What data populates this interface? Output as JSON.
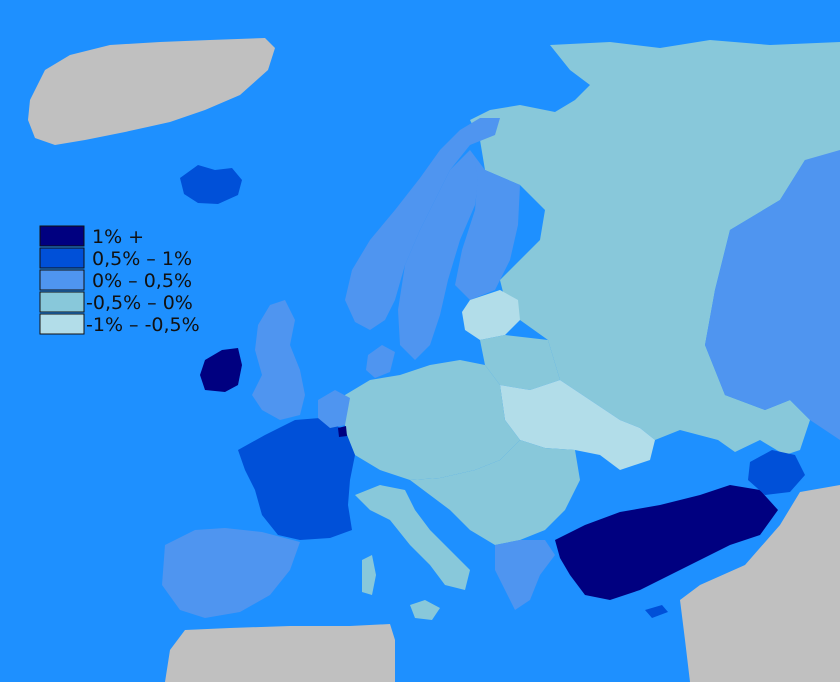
{
  "colors": {
    "sea": "#1e90ff",
    "non_eu": "#c0c0c0",
    "class_1": "#000080",
    "class_2": "#0050d8",
    "class_3": "#4f95f0",
    "class_4": "#88c8da",
    "class_5": "#b2dde9",
    "border": "#ffffff"
  },
  "legend": {
    "items": [
      {
        "label": "1% +",
        "color": "#000080"
      },
      {
        "label": "0,5% – 1%",
        "color": "#0050d8"
      },
      {
        "label": "0% – 0,5%",
        "color": "#4f95f0"
      },
      {
        "label": "-0,5% – 0%",
        "color": "#88c8da"
      },
      {
        "label": "-1% – -0,5%",
        "color": "#b2dde9"
      }
    ]
  }
}
